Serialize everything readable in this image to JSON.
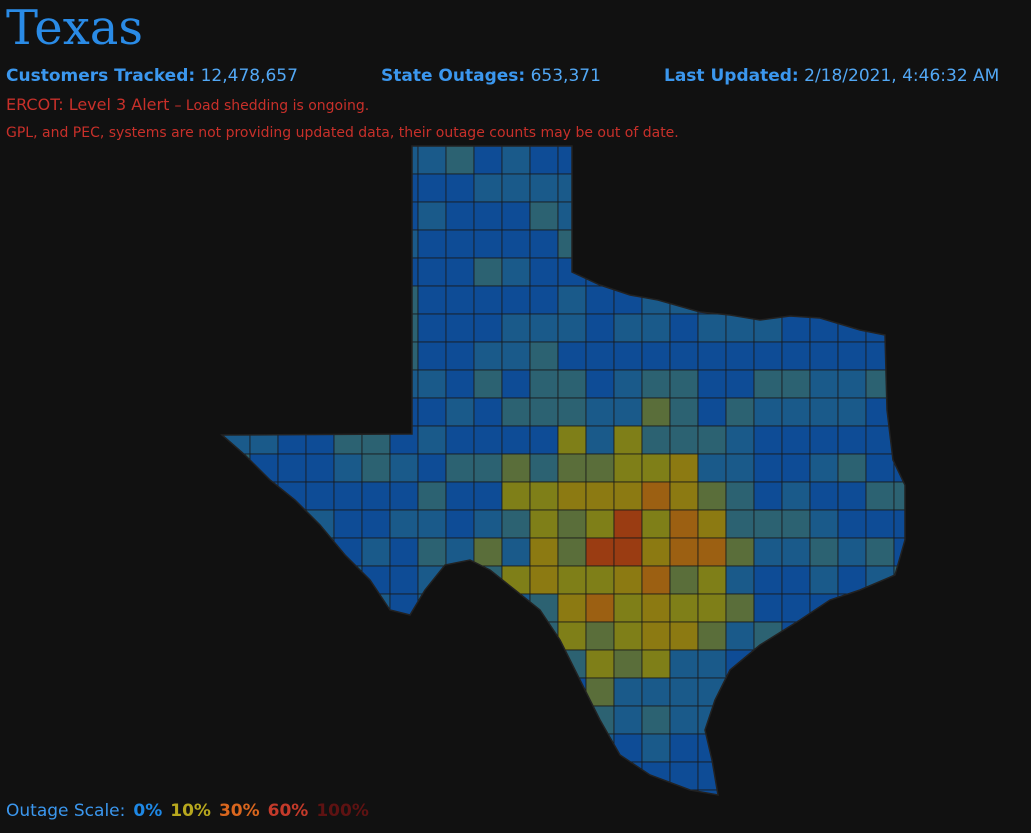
{
  "header": {
    "title": "Texas"
  },
  "stats": [
    {
      "label": "Customers Tracked:",
      "value": "12,478,657"
    },
    {
      "label": "State Outages:",
      "value": "653,371"
    },
    {
      "label": "Last Updated:",
      "value": "2/18/2021, 4:46:32 AM"
    }
  ],
  "alert": {
    "level": "ERCOT: Level 3 Alert",
    "detail": "– Load shedding is ongoing."
  },
  "warning": "GPL, and PEC, systems are not providing updated data, their outage counts may be out of date.",
  "scale": {
    "label": "Outage Scale:",
    "levels": [
      {
        "label": "0%",
        "color": "#1e88e5"
      },
      {
        "label": "10%",
        "color": "#b8a81e"
      },
      {
        "label": "30%",
        "color": "#d9661e"
      },
      {
        "label": "60%",
        "color": "#c43a2a"
      },
      {
        "label": "100%",
        "color": "#5e1212"
      }
    ]
  }
}
